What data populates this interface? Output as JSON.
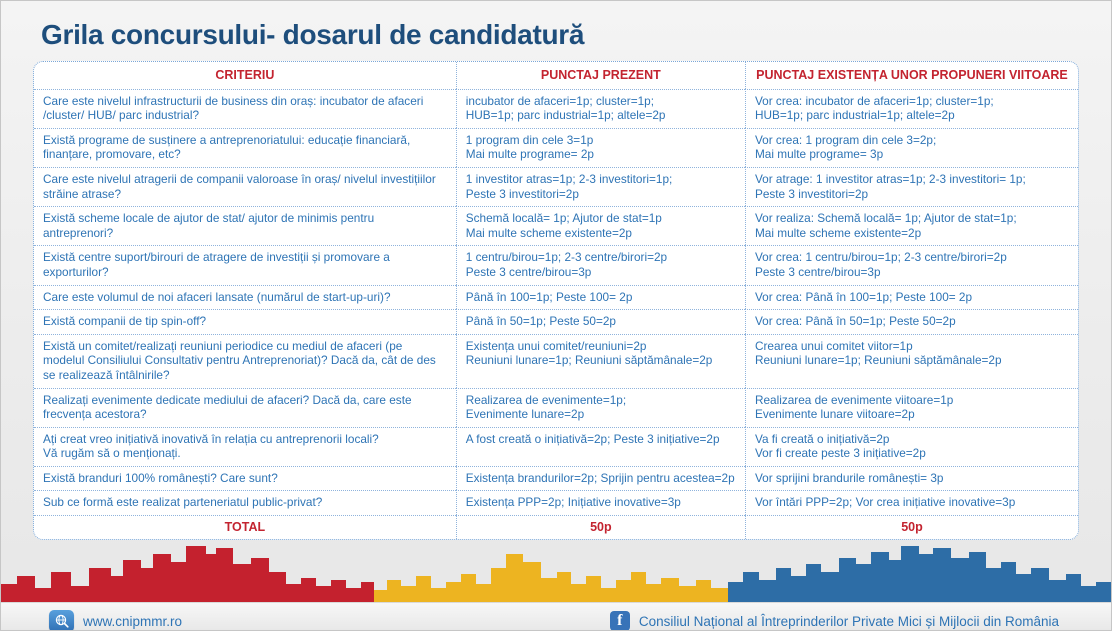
{
  "page": {
    "title": "Grila concursului- dosarul de candidatură"
  },
  "colors": {
    "title_blue": "#1e4e7c",
    "accent_red": "#c32430",
    "text_blue": "#2e74b5",
    "border_dotted_blue": "#7ba7d7",
    "flag_red": "#c4212e",
    "flag_yellow": "#edb421",
    "flag_blue": "#2d6da6",
    "facebook_blue": "#3873b8"
  },
  "icons": {
    "web_icon": "globe-magnifier-icon",
    "facebook_icon": "facebook-icon",
    "facebook_glyph": "f"
  },
  "table": {
    "headers": [
      "CRITERIU",
      "PUNCTAJ PREZENT",
      "PUNCTAJ EXISTENȚA UNOR PROPUNERI VIITOARE"
    ],
    "rows": [
      {
        "criteriu": [
          "Care este nivelul infrastructurii de business din oraș: incubator de afaceri",
          "/cluster/ HUB/ parc industrial?"
        ],
        "prezent": [
          "incubator de afaceri=1p; cluster=1p;",
          "HUB=1p; parc industrial=1p; altele=2p"
        ],
        "viitor": [
          "Vor crea: incubator de afaceri=1p; cluster=1p;",
          "HUB=1p; parc industrial=1p; altele=2p"
        ]
      },
      {
        "criteriu": [
          "Există programe de susținere a antreprenoriatului: educație financiară,",
          "finanțare, promovare, etc?"
        ],
        "prezent": [
          "1 program din cele 3=1p",
          "Mai multe programe= 2p"
        ],
        "viitor": [
          "Vor crea: 1 program din cele 3=2p;",
          "Mai multe programe= 3p"
        ]
      },
      {
        "criteriu": [
          "Care este nivelul atragerii de companii valoroase în oraș/ nivelul investițiilor",
          "străine atrase?"
        ],
        "prezent": [
          "1 investitor atras=1p; 2-3 investitori=1p;",
          "Peste 3 investitori=2p"
        ],
        "viitor": [
          "Vor atrage: 1 investitor atras=1p; 2-3 investitori= 1p;",
          "Peste 3 investitori=2p"
        ]
      },
      {
        "criteriu": [
          "Există scheme locale de ajutor de stat/ ajutor de minimis pentru antreprenori?"
        ],
        "prezent": [
          "Schemă locală= 1p; Ajutor de stat=1p",
          "Mai multe scheme existente=2p"
        ],
        "viitor": [
          "Vor realiza: Schemă locală= 1p; Ajutor de stat=1p;",
          "Mai multe scheme existente=2p"
        ]
      },
      {
        "criteriu": [
          "Există centre suport/birouri de atragere de investiții și promovare a exporturilor?"
        ],
        "prezent": [
          "1 centru/birou=1p; 2-3 centre/birori=2p",
          "Peste 3 centre/birou=3p"
        ],
        "viitor": [
          "Vor crea: 1 centru/birou=1p; 2-3 centre/birori=2p",
          "Peste 3 centre/birou=3p"
        ]
      },
      {
        "criteriu": [
          "Care este volumul de noi afaceri lansate (numărul de start-up-uri)?"
        ],
        "prezent": [
          "Până în 100=1p; Peste 100= 2p"
        ],
        "viitor": [
          "Vor crea: Până în 100=1p; Peste 100= 2p"
        ]
      },
      {
        "criteriu": [
          "Există companii de tip spin-off?"
        ],
        "prezent": [
          "Până în 50=1p; Peste 50=2p"
        ],
        "viitor": [
          "Vor crea: Până în 50=1p; Peste 50=2p"
        ]
      },
      {
        "criteriu": [
          "Există un comitet/realizați reuniuni periodice cu mediul de afaceri (pe",
          "modelul Consiliului Consultativ pentru Antreprenoriat)? Dacă da, cât de des",
          "se realizează întâlnirile?"
        ],
        "prezent": [
          "Existența unui comitet/reuniuni=2p",
          "Reuniuni lunare=1p; Reuniuni săptămânale=2p"
        ],
        "viitor": [
          "Crearea unui comitet viitor=1p",
          "Reuniuni lunare=1p; Reuniuni săptămânale=2p"
        ]
      },
      {
        "criteriu": [
          "Realizați evenimente dedicate mediului de afaceri?  Dacă da, care este",
          "frecvența acestora?"
        ],
        "prezent": [
          "Realizarea de evenimente=1p;",
          "Evenimente lunare=2p"
        ],
        "viitor": [
          "Realizarea de evenimente viitoare=1p",
          "Evenimente lunare viitoare=2p"
        ]
      },
      {
        "criteriu": [
          "Ați creat vreo inițiativă inovativă în relația cu antreprenorii locali?",
          "Vă rugăm să o menționați."
        ],
        "prezent": [
          "A fost creată o inițiativă=2p; Peste 3 inițiative=2p"
        ],
        "viitor": [
          "Va fi creată o inițiativă=2p",
          "Vor fi create peste 3 inițiative=2p"
        ]
      },
      {
        "criteriu": [
          "Există branduri 100% românești? Care sunt?"
        ],
        "prezent": [
          "Existența brandurilor=2p; Sprijin pentru acestea=2p"
        ],
        "viitor": [
          "Vor sprijini brandurile românești= 3p"
        ]
      },
      {
        "criteriu": [
          "Sub ce formă este realizat parteneriatul public-privat?"
        ],
        "prezent": [
          "Existența PPP=2p; Inițiative inovative=3p"
        ],
        "viitor": [
          "Vor întări PPP=2p; Vor crea inițiative inovative=3p"
        ]
      }
    ],
    "total": {
      "label": "TOTAL",
      "prezent": "50p",
      "viitor": "50p"
    }
  },
  "footer": {
    "website": "www.cnipmmr.ro",
    "facebook_text": "Consiliul Național al Întreprinderilor Private Mici și Mijlocii din România"
  }
}
